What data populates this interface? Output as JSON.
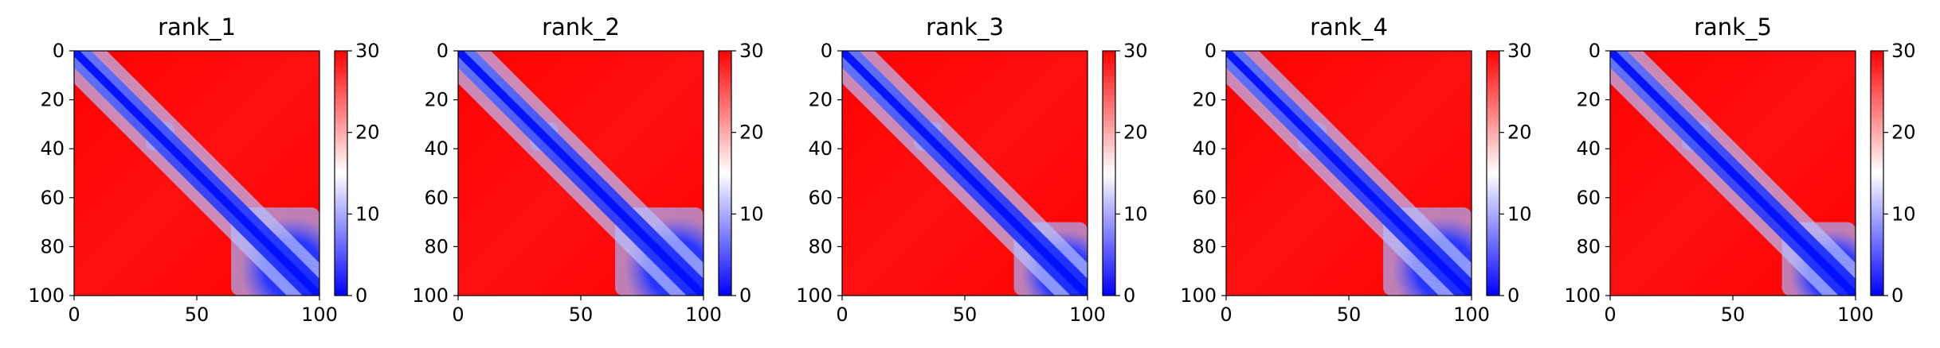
{
  "chart_data": [
    {
      "type": "heatmap",
      "title": "rank_1",
      "xlabel": "",
      "ylabel": "",
      "xlim": [
        0,
        100
      ],
      "ylim": [
        100,
        0
      ],
      "xticks": [
        "0",
        "50",
        "100"
      ],
      "yticks": [
        "0",
        "20",
        "40",
        "60",
        "80",
        "100"
      ],
      "colorbar": {
        "min": 0,
        "max": 30,
        "ticks": [
          "0",
          "10",
          "20",
          "30"
        ],
        "colors": [
          "#0000ff",
          "#ffffff",
          "#ff0000"
        ]
      },
      "pattern": "low values (blue) along diagonal band; domain around residues 30–40; large low-value block in lower-right corner (residues ~65–100); remaining off-diagonal values high (red)"
    },
    {
      "type": "heatmap",
      "title": "rank_2",
      "xlabel": "",
      "ylabel": "",
      "xlim": [
        0,
        100
      ],
      "ylim": [
        100,
        0
      ],
      "xticks": [
        "0",
        "50",
        "100"
      ],
      "yticks": [
        "0",
        "20",
        "40",
        "60",
        "80",
        "100"
      ],
      "colorbar": {
        "min": 0,
        "max": 30,
        "ticks": [
          "0",
          "10",
          "20",
          "30"
        ],
        "colors": [
          "#0000ff",
          "#ffffff",
          "#ff0000"
        ]
      },
      "pattern": "low values along diagonal band; domain around residues 30–40; low-value block in lower-right corner (residues ~65–100)"
    },
    {
      "type": "heatmap",
      "title": "rank_3",
      "xlabel": "",
      "ylabel": "",
      "xlim": [
        0,
        100
      ],
      "ylim": [
        100,
        0
      ],
      "xticks": [
        "0",
        "50",
        "100"
      ],
      "yticks": [
        "0",
        "20",
        "40",
        "60",
        "80",
        "100"
      ],
      "colorbar": {
        "min": 0,
        "max": 30,
        "ticks": [
          "0",
          "10",
          "20",
          "30"
        ],
        "colors": [
          "#0000ff",
          "#ffffff",
          "#ff0000"
        ]
      },
      "pattern": "low values along diagonal band; domain around residues 30–40; smaller low-value block in lower-right corner (residues ~70–100)"
    },
    {
      "type": "heatmap",
      "title": "rank_4",
      "xlabel": "",
      "ylabel": "",
      "xlim": [
        0,
        100
      ],
      "ylim": [
        100,
        0
      ],
      "xticks": [
        "0",
        "50",
        "100"
      ],
      "yticks": [
        "0",
        "20",
        "40",
        "60",
        "80",
        "100"
      ],
      "colorbar": {
        "min": 0,
        "max": 30,
        "ticks": [
          "0",
          "10",
          "20",
          "30"
        ],
        "colors": [
          "#0000ff",
          "#ffffff",
          "#ff0000"
        ]
      },
      "pattern": "low values along diagonal band; domain around residues 30–40; low-value block in lower-right corner (residues ~65–100)"
    },
    {
      "type": "heatmap",
      "title": "rank_5",
      "xlabel": "",
      "ylabel": "",
      "xlim": [
        0,
        100
      ],
      "ylim": [
        100,
        0
      ],
      "xticks": [
        "0",
        "50",
        "100"
      ],
      "yticks": [
        "0",
        "20",
        "40",
        "60",
        "80",
        "100"
      ],
      "colorbar": {
        "min": 0,
        "max": 30,
        "ticks": [
          "0",
          "10",
          "20",
          "30"
        ],
        "colors": [
          "#0000ff",
          "#ffffff",
          "#ff0000"
        ]
      },
      "pattern": "low values along diagonal band; domain around residues 30–40; smaller low-value block in lower-right corner (residues ~70–100)"
    }
  ]
}
